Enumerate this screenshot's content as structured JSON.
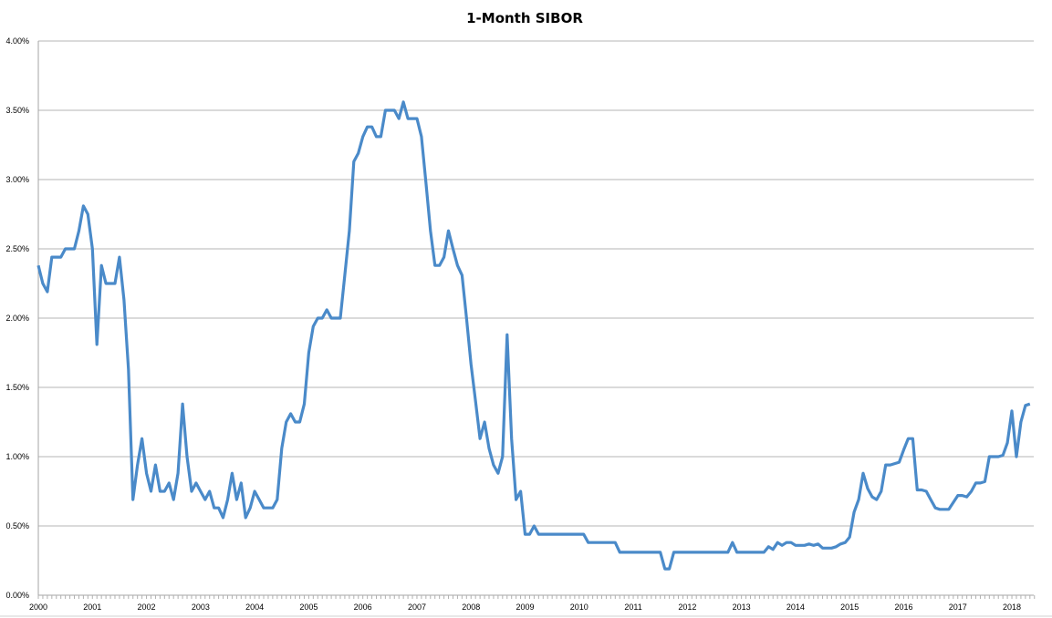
{
  "chart_data": {
    "type": "line",
    "title": "1-Month SIBOR",
    "xlabel": "",
    "ylabel": "",
    "x_start": "2000-01",
    "x_frequency": "monthly",
    "x_tick_labels": [
      "2000",
      "2001",
      "2002",
      "2003",
      "2004",
      "2005",
      "2006",
      "2007",
      "2008",
      "2009",
      "2010",
      "2011",
      "2012",
      "2013",
      "2014",
      "2015",
      "2016",
      "2017",
      "2018"
    ],
    "y_tick_labels": [
      "0.00%",
      "0.50%",
      "1.00%",
      "1.50%",
      "2.00%",
      "2.50%",
      "3.00%",
      "3.50%",
      "4.00%"
    ],
    "ylim": [
      0,
      4
    ],
    "y_unit": "%",
    "grid": "horizontal",
    "legend": "none",
    "line_color": "#4a8ac9",
    "series": [
      {
        "values": [
          2.38,
          2.25,
          2.19,
          2.44,
          2.44,
          2.44,
          2.5,
          2.5,
          2.5,
          2.63,
          2.81,
          2.75,
          2.5,
          1.81,
          2.38,
          2.25,
          2.25,
          2.25,
          2.44,
          2.13,
          1.63,
          0.69,
          0.94,
          1.13,
          0.88,
          0.75,
          0.94,
          0.75,
          0.75,
          0.81,
          0.69,
          0.88,
          1.38,
          1.0,
          0.75,
          0.81,
          0.75,
          0.69,
          0.75,
          0.63,
          0.63,
          0.56,
          0.69,
          0.88,
          0.69,
          0.81,
          0.56,
          0.63,
          0.75,
          0.69,
          0.63,
          0.63,
          0.63,
          0.69,
          1.06,
          1.25,
          1.31,
          1.25,
          1.25,
          1.38,
          1.75,
          1.94,
          2.0,
          2.0,
          2.06,
          2.0,
          2.0,
          2.0,
          2.31,
          2.63,
          3.13,
          3.19,
          3.31,
          3.38,
          3.38,
          3.31,
          3.31,
          3.5,
          3.5,
          3.5,
          3.44,
          3.56,
          3.44,
          3.44,
          3.44,
          3.31,
          2.98,
          2.63,
          2.38,
          2.38,
          2.44,
          2.63,
          2.5,
          2.38,
          2.31,
          2.0,
          1.67,
          1.4,
          1.13,
          1.25,
          1.06,
          0.94,
          0.88,
          1.0,
          1.88,
          1.13,
          0.69,
          0.75,
          0.44,
          0.44,
          0.5,
          0.44,
          0.44,
          0.44,
          0.44,
          0.44,
          0.44,
          0.44,
          0.44,
          0.44,
          0.44,
          0.44,
          0.38,
          0.38,
          0.38,
          0.38,
          0.38,
          0.38,
          0.38,
          0.31,
          0.31,
          0.31,
          0.31,
          0.31,
          0.31,
          0.31,
          0.31,
          0.31,
          0.31,
          0.19,
          0.19,
          0.31,
          0.31,
          0.31,
          0.31,
          0.31,
          0.31,
          0.31,
          0.31,
          0.31,
          0.31,
          0.31,
          0.31,
          0.31,
          0.38,
          0.31,
          0.31,
          0.31,
          0.31,
          0.31,
          0.31,
          0.31,
          0.35,
          0.33,
          0.38,
          0.36,
          0.38,
          0.38,
          0.36,
          0.36,
          0.36,
          0.37,
          0.36,
          0.37,
          0.34,
          0.34,
          0.34,
          0.35,
          0.37,
          0.38,
          0.42,
          0.6,
          0.69,
          0.88,
          0.77,
          0.71,
          0.69,
          0.75,
          0.94,
          0.94,
          0.95,
          0.96,
          1.05,
          1.13,
          1.13,
          0.76,
          0.76,
          0.75,
          0.69,
          0.63,
          0.62,
          0.62,
          0.62,
          0.67,
          0.72,
          0.72,
          0.71,
          0.75,
          0.81,
          0.81,
          0.82,
          1.0,
          1.0,
          1.0,
          1.01,
          1.1,
          1.33,
          1.0,
          1.25,
          1.37,
          1.38
        ]
      }
    ]
  }
}
